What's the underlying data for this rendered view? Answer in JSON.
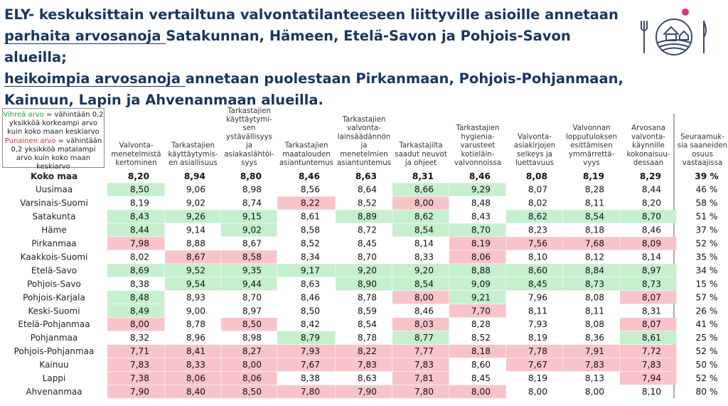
{
  "title": {
    "line1": "ELY- keskuksittain vertailtuna valvontatilanteeseen liittyville asioille annetaan",
    "line2_underlined": "parhaita arvosanoja ",
    "line2_rest": "Satakunnan, Hämeen, Etelä-Savon ja Pohjois-Savon alueilla;",
    "line3_underlined": "heikoimpia arvosanoja ",
    "line3_rest": "annetaan puolestaan Pirkanmaan, Pohjois-Pohjanmaan,",
    "line4": "Kainuun, Lapin ja Ahvenanmaan alueilla."
  },
  "legend": {
    "green_label": "Vihreä arvo",
    "green_text": " = vähintään 0,2 yksikköä korkeampi arvo kuin koko maan keskiarvo",
    "red_label": "Punainen arvo",
    "red_text": " = vähintään 0,2 yksikköä matalampi arvo kuin koko maan keskiarvo"
  },
  "colors": {
    "green": "#c6efce",
    "red": "#f8c4c9",
    "title": "#17375e",
    "logo": "#3b4a6b",
    "logo_dot": "#d6337e"
  },
  "logo_icon": "farm-logo-icon",
  "chart_data": {
    "type": "table",
    "columns": [
      [
        "Valvonta-",
        "menetelmistä",
        "kertominen"
      ],
      [
        "Tarkastajien",
        "käyttäytymis-",
        "en asiallisuus"
      ],
      [
        "Tarkastajien",
        "käyttäytymi-",
        "sen",
        "ystävällisyys",
        "ja",
        "asiakaslähtöi-",
        "syys"
      ],
      [
        "Tarkastajien",
        "maatalouden",
        "asiantuntemus"
      ],
      [
        "Tarkastajien",
        "valvonta-",
        "lainsäädännön",
        "ja",
        "menetelmien",
        "asiantuntemus"
      ],
      [
        "Tarkastajilta",
        "saadut neuvot",
        "ja ohjeet"
      ],
      [
        "Tarkastajien",
        "hygienia-",
        "varusteet",
        "kotieläin-",
        "valvonnoissa"
      ],
      [
        "Valvonta-",
        "asiakirjojen",
        "selkeys ja",
        "luettavuus"
      ],
      [
        "Valvonnan",
        "lopputuloksen",
        "esittämisen",
        "ymmärrettä-",
        "vyys"
      ],
      [
        "Arvosana",
        "valvonta-",
        "käynnille",
        "kokonaisuu-",
        "dessaan"
      ],
      [
        "Seuraamuk-",
        "sia saaneiden",
        "osuus",
        "vastaajissa"
      ]
    ],
    "rows": [
      {
        "name": "Koko maa",
        "values": [
          "8,20",
          "8,94",
          "8,80",
          "8,46",
          "8,63",
          "8,31",
          "8,46",
          "8,08",
          "8,19",
          "8,29",
          "39 %"
        ],
        "flags": [
          "",
          "",
          "",
          "",
          "",
          "",
          "",
          "",
          "",
          "",
          ""
        ]
      },
      {
        "name": "Uusimaa",
        "values": [
          "8,50",
          "9,06",
          "8,98",
          "8,56",
          "8,64",
          "8,66",
          "9,29",
          "8,07",
          "8,28",
          "8,44",
          "46 %"
        ],
        "flags": [
          "g",
          "",
          "",
          "",
          "",
          "g",
          "g",
          "",
          "",
          "",
          ""
        ]
      },
      {
        "name": "Varsinais-Suomi",
        "values": [
          "8,19",
          "9,02",
          "8,74",
          "8,22",
          "8,52",
          "8,00",
          "8,48",
          "8,02",
          "8,11",
          "8,20",
          "58 %"
        ],
        "flags": [
          "",
          "",
          "",
          "r",
          "",
          "r",
          "",
          "",
          "",
          "",
          ""
        ]
      },
      {
        "name": "Satakunta",
        "values": [
          "8,43",
          "9,26",
          "9,15",
          "8,61",
          "8,89",
          "8,62",
          "8,43",
          "8,62",
          "8,54",
          "8,70",
          "51 %"
        ],
        "flags": [
          "g",
          "g",
          "g",
          "",
          "g",
          "g",
          "",
          "g",
          "g",
          "g",
          ""
        ]
      },
      {
        "name": "Häme",
        "values": [
          "8,44",
          "9,14",
          "9,02",
          "8,58",
          "8,72",
          "8,54",
          "8,70",
          "8,23",
          "8,18",
          "8,46",
          "37 %"
        ],
        "flags": [
          "g",
          "",
          "g",
          "",
          "",
          "g",
          "g",
          "",
          "",
          "",
          ""
        ]
      },
      {
        "name": "Pirkanmaa",
        "values": [
          "7,98",
          "8,88",
          "8,67",
          "8,52",
          "8,45",
          "8,14",
          "8,19",
          "7,56",
          "7,68",
          "8,09",
          "52 %"
        ],
        "flags": [
          "r",
          "",
          "",
          "",
          "",
          "",
          "r",
          "r",
          "r",
          "r",
          ""
        ]
      },
      {
        "name": "Kaakkois-Suomi",
        "values": [
          "8,02",
          "8,67",
          "8,58",
          "8,34",
          "8,70",
          "8,33",
          "8,06",
          "8,10",
          "8,12",
          "8,14",
          "35 %"
        ],
        "flags": [
          "",
          "r",
          "r",
          "",
          "",
          "",
          "r",
          "",
          "",
          "",
          ""
        ]
      },
      {
        "name": "Etelä-Savo",
        "values": [
          "8,69",
          "9,52",
          "9,35",
          "9,17",
          "9,20",
          "9,20",
          "8,88",
          "8,60",
          "8,84",
          "8,97",
          "34 %"
        ],
        "flags": [
          "g",
          "g",
          "g",
          "g",
          "g",
          "g",
          "g",
          "g",
          "g",
          "g",
          ""
        ]
      },
      {
        "name": "Pohjois-Savo",
        "values": [
          "8,38",
          "9,54",
          "9,44",
          "8,63",
          "8,90",
          "8,54",
          "9,09",
          "8,45",
          "8,73",
          "8,73",
          "15 %"
        ],
        "flags": [
          "",
          "g",
          "g",
          "",
          "g",
          "g",
          "g",
          "g",
          "g",
          "g",
          ""
        ]
      },
      {
        "name": "Pohjois-Karjala",
        "values": [
          "8,48",
          "8,93",
          "8,70",
          "8,46",
          "8,78",
          "8,00",
          "9,21",
          "7,96",
          "8,08",
          "8,07",
          "57 %"
        ],
        "flags": [
          "g",
          "",
          "",
          "",
          "",
          "r",
          "g",
          "",
          "",
          "r",
          ""
        ]
      },
      {
        "name": "Keski-Suomi",
        "values": [
          "8,49",
          "9,00",
          "8,97",
          "8,50",
          "8,59",
          "8,46",
          "7,70",
          "8,11",
          "8,11",
          "8,31",
          "26 %"
        ],
        "flags": [
          "g",
          "",
          "",
          "",
          "",
          "",
          "r",
          "",
          "",
          "",
          ""
        ]
      },
      {
        "name": "Etelä-Pohjanmaa",
        "values": [
          "8,00",
          "8,78",
          "8,50",
          "8,42",
          "8,54",
          "8,03",
          "8,28",
          "7,93",
          "8,08",
          "8,07",
          "41 %"
        ],
        "flags": [
          "r",
          "",
          "r",
          "",
          "",
          "r",
          "",
          "",
          "",
          "r",
          ""
        ]
      },
      {
        "name": "Pohjanmaa",
        "values": [
          "8,32",
          "8,96",
          "8,98",
          "8,79",
          "8,78",
          "8,77",
          "8,52",
          "8,19",
          "8,36",
          "8,61",
          "25 %"
        ],
        "flags": [
          "",
          "",
          "",
          "g",
          "",
          "g",
          "",
          "",
          "",
          "g",
          ""
        ]
      },
      {
        "name": "Pohjois-Pohjanmaa",
        "values": [
          "7,71",
          "8,41",
          "8,27",
          "7,93",
          "8,22",
          "7,77",
          "8,18",
          "7,78",
          "7,91",
          "7,72",
          "52 %"
        ],
        "flags": [
          "r",
          "r",
          "r",
          "r",
          "r",
          "r",
          "r",
          "r",
          "r",
          "r",
          ""
        ]
      },
      {
        "name": "Kainuu",
        "values": [
          "7,83",
          "8,33",
          "8,00",
          "7,67",
          "7,83",
          "7,83",
          "8,60",
          "7,67",
          "7,83",
          "7,83",
          "50 %"
        ],
        "flags": [
          "r",
          "r",
          "r",
          "r",
          "r",
          "r",
          "",
          "r",
          "r",
          "r",
          ""
        ]
      },
      {
        "name": "Lappi",
        "values": [
          "7,38",
          "8,06",
          "8,06",
          "8,38",
          "8,63",
          "7,81",
          "8,45",
          "8,19",
          "8,13",
          "7,94",
          "52 %"
        ],
        "flags": [
          "r",
          "r",
          "r",
          "",
          "",
          "r",
          "",
          "",
          "",
          "r",
          ""
        ]
      },
      {
        "name": "Ahvenanmaa",
        "values": [
          "7,90",
          "8,40",
          "8,50",
          "7,80",
          "7,90",
          "7,80",
          "8,00",
          "8,00",
          "8,00",
          "8,10",
          "80 %"
        ],
        "flags": [
          "r",
          "r",
          "r",
          "r",
          "r",
          "r",
          "r",
          "",
          "",
          "",
          ""
        ]
      }
    ]
  }
}
